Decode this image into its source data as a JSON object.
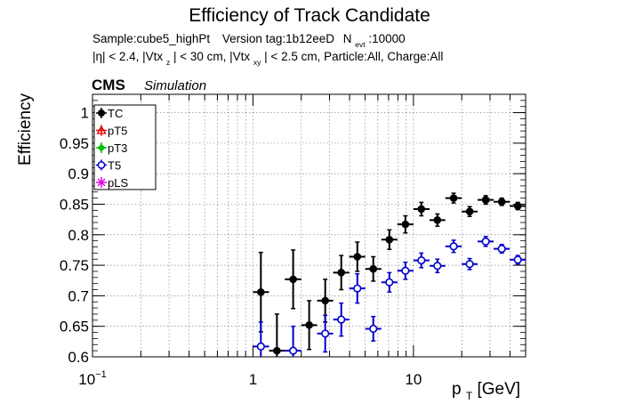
{
  "chart_data": {
    "type": "scatter",
    "title": "Efficiency of Track Candidate",
    "subtitle_line1": {
      "sample": "Sample:cube5_highPt",
      "version": "Version tag:1b12eeD",
      "n_label": "N",
      "n_sub": "evt",
      "n_value": ":10000"
    },
    "subtitle_line2": {
      "eta": "|η| < 2.4, |Vtx",
      "z_sub": "z",
      "mid": "| < 30 cm, |Vtx",
      "xy_sub": "xy",
      "tail": "| < 2.5 cm, Particle:All, Charge:All"
    },
    "cms_label": "CMS",
    "simulation_label": "Simulation",
    "ylabel": "Efficiency",
    "xlabel": {
      "p": "p",
      "sub": "T",
      "unit": " [GeV]"
    },
    "xscale": "log",
    "xlim": [
      0.1,
      50
    ],
    "ylim": [
      0.6,
      1.03
    ],
    "grid": true,
    "x_tick_labels": [
      {
        "value": 0.1,
        "base": "10",
        "exp": "−1"
      },
      {
        "value": 1,
        "base": "1",
        "exp": ""
      },
      {
        "value": 10,
        "base": "10",
        "exp": ""
      }
    ],
    "y_ticks": [
      0.6,
      0.65,
      0.7,
      0.75,
      0.8,
      0.85,
      0.9,
      0.95,
      1
    ],
    "y_tick_labels": [
      "0.6",
      "0.65",
      "0.7",
      "0.75",
      "0.8",
      "0.85",
      "0.9",
      "0.95",
      "1"
    ],
    "legend": {
      "position": "top-left",
      "entries": [
        {
          "name": "TC",
          "color": "#000000",
          "marker": "filled-circle"
        },
        {
          "name": "pT5",
          "color": "#e00000",
          "marker": "open-triangle"
        },
        {
          "name": "pT3",
          "color": "#00c000",
          "marker": "filled-diamond"
        },
        {
          "name": "T5",
          "color": "#0000cc",
          "marker": "open-circle"
        },
        {
          "name": "pLS",
          "color": "#e000e0",
          "marker": "star"
        }
      ]
    },
    "series": [
      {
        "name": "TC",
        "color": "#000000",
        "points": [
          {
            "x": 1.12,
            "xlo": 1.0,
            "xhi": 1.26,
            "y": 0.706,
            "err": 0.065
          },
          {
            "x": 1.41,
            "xlo": 1.26,
            "xhi": 1.58,
            "y": 0.61,
            "err": 0.06
          },
          {
            "x": 1.78,
            "xlo": 1.58,
            "xhi": 2.0,
            "y": 0.727,
            "err": 0.048
          },
          {
            "x": 2.24,
            "xlo": 2.0,
            "xhi": 2.51,
            "y": 0.652,
            "err": 0.04
          },
          {
            "x": 2.82,
            "xlo": 2.51,
            "xhi": 3.16,
            "y": 0.692,
            "err": 0.035
          },
          {
            "x": 3.55,
            "xlo": 3.16,
            "xhi": 3.98,
            "y": 0.738,
            "err": 0.028
          },
          {
            "x": 4.47,
            "xlo": 3.98,
            "xhi": 5.01,
            "y": 0.764,
            "err": 0.024
          },
          {
            "x": 5.62,
            "xlo": 5.01,
            "xhi": 6.31,
            "y": 0.744,
            "err": 0.02
          },
          {
            "x": 7.08,
            "xlo": 6.31,
            "xhi": 7.94,
            "y": 0.792,
            "err": 0.016
          },
          {
            "x": 8.91,
            "xlo": 7.94,
            "xhi": 10.0,
            "y": 0.817,
            "err": 0.014
          },
          {
            "x": 11.2,
            "xlo": 10.0,
            "xhi": 12.6,
            "y": 0.842,
            "err": 0.011
          },
          {
            "x": 14.1,
            "xlo": 12.6,
            "xhi": 15.8,
            "y": 0.824,
            "err": 0.01
          },
          {
            "x": 17.8,
            "xlo": 15.8,
            "xhi": 20.0,
            "y": 0.86,
            "err": 0.008
          },
          {
            "x": 22.4,
            "xlo": 20.0,
            "xhi": 25.1,
            "y": 0.838,
            "err": 0.008
          },
          {
            "x": 28.2,
            "xlo": 25.1,
            "xhi": 31.6,
            "y": 0.857,
            "err": 0.007
          },
          {
            "x": 35.5,
            "xlo": 31.6,
            "xhi": 39.8,
            "y": 0.854,
            "err": 0.006
          },
          {
            "x": 44.7,
            "xlo": 39.8,
            "xhi": 50.1,
            "y": 0.847,
            "err": 0.006
          }
        ]
      },
      {
        "name": "T5",
        "color": "#0000cc",
        "points": [
          {
            "x": 1.12,
            "xlo": 1.0,
            "xhi": 1.26,
            "y": 0.617,
            "err": 0.04
          },
          {
            "x": 1.78,
            "xlo": 1.58,
            "xhi": 2.0,
            "y": 0.61,
            "err": 0.04
          },
          {
            "x": 2.82,
            "xlo": 2.51,
            "xhi": 3.16,
            "y": 0.638,
            "err": 0.03
          },
          {
            "x": 3.55,
            "xlo": 3.16,
            "xhi": 3.98,
            "y": 0.661,
            "err": 0.027
          },
          {
            "x": 4.47,
            "xlo": 3.98,
            "xhi": 5.01,
            "y": 0.712,
            "err": 0.024
          },
          {
            "x": 5.62,
            "xlo": 5.01,
            "xhi": 6.31,
            "y": 0.646,
            "err": 0.02
          },
          {
            "x": 7.08,
            "xlo": 6.31,
            "xhi": 7.94,
            "y": 0.722,
            "err": 0.016
          },
          {
            "x": 8.91,
            "xlo": 7.94,
            "xhi": 10.0,
            "y": 0.741,
            "err": 0.014
          },
          {
            "x": 11.2,
            "xlo": 10.0,
            "xhi": 12.6,
            "y": 0.758,
            "err": 0.012
          },
          {
            "x": 14.1,
            "xlo": 12.6,
            "xhi": 15.8,
            "y": 0.749,
            "err": 0.011
          },
          {
            "x": 17.8,
            "xlo": 15.8,
            "xhi": 20.0,
            "y": 0.781,
            "err": 0.01
          },
          {
            "x": 22.4,
            "xlo": 20.0,
            "xhi": 25.1,
            "y": 0.752,
            "err": 0.009
          },
          {
            "x": 28.2,
            "xlo": 25.1,
            "xhi": 31.6,
            "y": 0.789,
            "err": 0.008
          },
          {
            "x": 35.5,
            "xlo": 31.6,
            "xhi": 39.8,
            "y": 0.777,
            "err": 0.007
          },
          {
            "x": 44.7,
            "xlo": 39.8,
            "xhi": 50.1,
            "y": 0.759,
            "err": 0.007
          }
        ]
      }
    ]
  }
}
